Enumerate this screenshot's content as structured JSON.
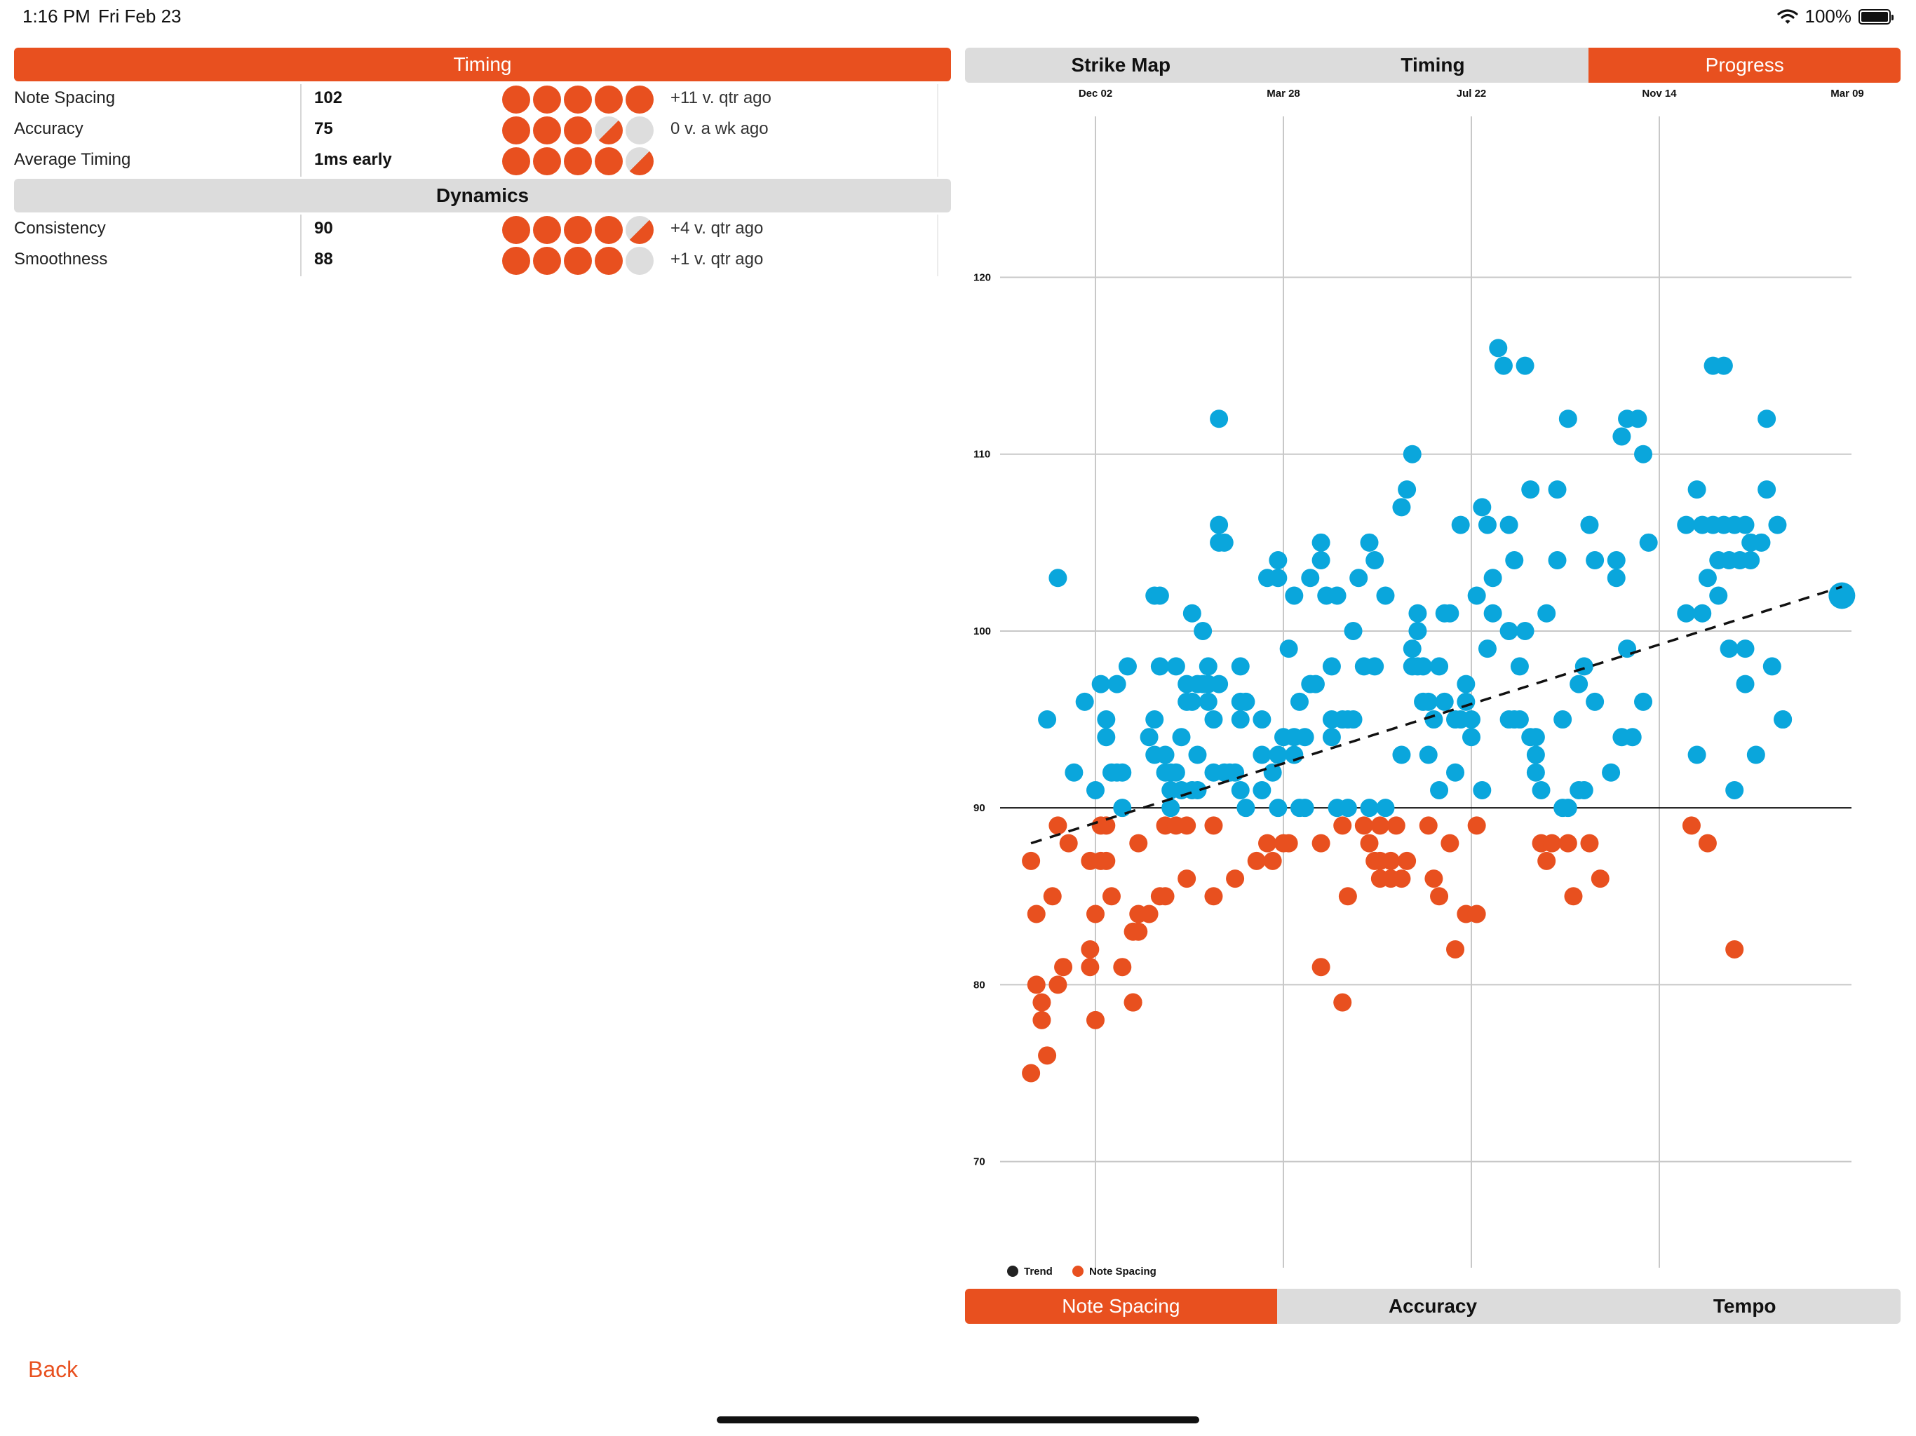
{
  "status_bar": {
    "time": "1:16 PM",
    "date": "Fri Feb 23",
    "battery": "100%",
    "battery_level": 1.0
  },
  "timing_section": {
    "title": "Timing",
    "rows": [
      {
        "label": "Note Spacing",
        "value": "102",
        "rating": 5,
        "comparison": "+11 v. qtr ago"
      },
      {
        "label": "Accuracy",
        "value": "75",
        "rating": 3.5,
        "comparison": "0 v. a wk ago"
      },
      {
        "label": "Average Timing",
        "value": "1ms early",
        "rating": 4.5,
        "comparison": ""
      }
    ]
  },
  "dynamics_section": {
    "title": "Dynamics",
    "rows": [
      {
        "label": "Consistency",
        "value": "90",
        "rating": 4.5,
        "comparison": "+4 v. qtr ago"
      },
      {
        "label": "Smoothness",
        "value": "88",
        "rating": 4,
        "comparison": "+1 v. qtr ago"
      }
    ]
  },
  "top_tabs": [
    {
      "label": "Strike Map",
      "active": false
    },
    {
      "label": "Timing",
      "active": false
    },
    {
      "label": "Progress",
      "active": true
    }
  ],
  "bottom_tabs": [
    {
      "label": "Note  Spacing",
      "active": true
    },
    {
      "label": "Accuracy",
      "active": false
    },
    {
      "label": "Tempo",
      "active": false
    }
  ],
  "back_label": "Back",
  "colors": {
    "accent": "#e8501f",
    "blue": "#0aa6dc",
    "gray": "#dcdcdc",
    "empty_dot": "#dddddd"
  },
  "chart_data": {
    "type": "scatter",
    "x_tick_labels": [
      "Dec 02",
      "Mar 28",
      "Jul 22",
      "Nov 14",
      "Mar 09"
    ],
    "y_ticks": [
      70,
      80,
      90,
      100,
      110,
      120
    ],
    "ylim": [
      64,
      131
    ],
    "reference_line": 90,
    "legend": [
      "Trend",
      "Note Spacing"
    ],
    "legend_placement": "bottom-left",
    "trend": {
      "start": [
        -12,
        88
      ],
      "end": [
        139,
        102.5
      ]
    },
    "series": [
      {
        "name": "Note Spacing",
        "color_rule": "orange below 90, blue at or above 90",
        "points": [
          [
            -12,
            75
          ],
          [
            -12,
            87
          ],
          [
            -11,
            80
          ],
          [
            -11,
            84
          ],
          [
            -10,
            78
          ],
          [
            -10,
            79
          ],
          [
            -9,
            76
          ],
          [
            -9,
            95
          ],
          [
            -8,
            85
          ],
          [
            -7,
            89
          ],
          [
            -7,
            103
          ],
          [
            -7,
            80
          ],
          [
            -6,
            81
          ],
          [
            -5,
            88
          ],
          [
            -4,
            92
          ],
          [
            -2,
            96
          ],
          [
            -1,
            82
          ],
          [
            -1,
            87
          ],
          [
            -1,
            81
          ],
          [
            0,
            78
          ],
          [
            0,
            84
          ],
          [
            0,
            91
          ],
          [
            1,
            89
          ],
          [
            1,
            87
          ],
          [
            1,
            97
          ],
          [
            2,
            89
          ],
          [
            2,
            95
          ],
          [
            2,
            87
          ],
          [
            2,
            94
          ],
          [
            3,
            85
          ],
          [
            3,
            92
          ],
          [
            4,
            92
          ],
          [
            4,
            97
          ],
          [
            5,
            92
          ],
          [
            5,
            81
          ],
          [
            5,
            90
          ],
          [
            6,
            98
          ],
          [
            7,
            83
          ],
          [
            7,
            79
          ],
          [
            7,
            79
          ],
          [
            8,
            88
          ],
          [
            8,
            84
          ],
          [
            8,
            83
          ],
          [
            10,
            94
          ],
          [
            10,
            84
          ],
          [
            11,
            102
          ],
          [
            11,
            93
          ],
          [
            11,
            95
          ],
          [
            12,
            102
          ],
          [
            12,
            98
          ],
          [
            12,
            85
          ],
          [
            13,
            85
          ],
          [
            13,
            93
          ],
          [
            13,
            92
          ],
          [
            13,
            89
          ],
          [
            14,
            91
          ],
          [
            14,
            90
          ],
          [
            14,
            92
          ],
          [
            15,
            92
          ],
          [
            15,
            89
          ],
          [
            15,
            98
          ],
          [
            16,
            91
          ],
          [
            16,
            94
          ],
          [
            17,
            97
          ],
          [
            17,
            96
          ],
          [
            17,
            86
          ],
          [
            17,
            89
          ],
          [
            18,
            91
          ],
          [
            18,
            96
          ],
          [
            18,
            101
          ],
          [
            19,
            97
          ],
          [
            19,
            91
          ],
          [
            19,
            93
          ],
          [
            20,
            100
          ],
          [
            20,
            97
          ],
          [
            21,
            96
          ],
          [
            21,
            97
          ],
          [
            21,
            98
          ],
          [
            22,
            95
          ],
          [
            22,
            92
          ],
          [
            22,
            89
          ],
          [
            22,
            85
          ],
          [
            23,
            97
          ],
          [
            23,
            112
          ],
          [
            23,
            106
          ],
          [
            23,
            105
          ],
          [
            24,
            105
          ],
          [
            24,
            92
          ],
          [
            25,
            92
          ],
          [
            26,
            92
          ],
          [
            26,
            86
          ],
          [
            27,
            98
          ],
          [
            27,
            96
          ],
          [
            27,
            91
          ],
          [
            27,
            95
          ],
          [
            28,
            90
          ],
          [
            28,
            96
          ],
          [
            30,
            87
          ],
          [
            31,
            95
          ],
          [
            31,
            93
          ],
          [
            31,
            91
          ],
          [
            32,
            88
          ],
          [
            32,
            103
          ],
          [
            33,
            92
          ],
          [
            33,
            87
          ],
          [
            34,
            103
          ],
          [
            34,
            104
          ],
          [
            34,
            93
          ],
          [
            34,
            90
          ],
          [
            35,
            88
          ],
          [
            35,
            94
          ],
          [
            36,
            88
          ],
          [
            36,
            99
          ],
          [
            37,
            93
          ],
          [
            37,
            102
          ],
          [
            37,
            94
          ],
          [
            38,
            96
          ],
          [
            38,
            90
          ],
          [
            39,
            94
          ],
          [
            39,
            90
          ],
          [
            40,
            103
          ],
          [
            40,
            97
          ],
          [
            41,
            97
          ],
          [
            42,
            105
          ],
          [
            42,
            104
          ],
          [
            42,
            88
          ],
          [
            42,
            81
          ],
          [
            43,
            102
          ],
          [
            44,
            98
          ],
          [
            44,
            95
          ],
          [
            44,
            94
          ],
          [
            45,
            90
          ],
          [
            45,
            102
          ],
          [
            46,
            79
          ],
          [
            46,
            89
          ],
          [
            46,
            95
          ],
          [
            47,
            85
          ],
          [
            47,
            90
          ],
          [
            47,
            95
          ],
          [
            48,
            95
          ],
          [
            48,
            100
          ],
          [
            49,
            103
          ],
          [
            50,
            89
          ],
          [
            50,
            98
          ],
          [
            51,
            88
          ],
          [
            51,
            105
          ],
          [
            51,
            90
          ],
          [
            52,
            87
          ],
          [
            52,
            104
          ],
          [
            52,
            98
          ],
          [
            53,
            89
          ],
          [
            53,
            87
          ],
          [
            53,
            86
          ],
          [
            54,
            90
          ],
          [
            54,
            102
          ],
          [
            55,
            87
          ],
          [
            55,
            86
          ],
          [
            56,
            89
          ],
          [
            57,
            107
          ],
          [
            57,
            93
          ],
          [
            57,
            86
          ],
          [
            58,
            108
          ],
          [
            58,
            87
          ],
          [
            59,
            110
          ],
          [
            59,
            99
          ],
          [
            59,
            98
          ],
          [
            60,
            101
          ],
          [
            60,
            100
          ],
          [
            60,
            98
          ],
          [
            61,
            96
          ],
          [
            61,
            98
          ],
          [
            62,
            93
          ],
          [
            62,
            89
          ],
          [
            62,
            96
          ],
          [
            63,
            95
          ],
          [
            63,
            86
          ],
          [
            64,
            91
          ],
          [
            64,
            98
          ],
          [
            64,
            85
          ],
          [
            65,
            101
          ],
          [
            65,
            96
          ],
          [
            66,
            88
          ],
          [
            66,
            101
          ],
          [
            67,
            95
          ],
          [
            67,
            82
          ],
          [
            67,
            92
          ],
          [
            68,
            106
          ],
          [
            68,
            95
          ],
          [
            69,
            97
          ],
          [
            69,
            96
          ],
          [
            69,
            84
          ],
          [
            70,
            95
          ],
          [
            70,
            94
          ],
          [
            71,
            84
          ],
          [
            71,
            89
          ],
          [
            71,
            102
          ],
          [
            72,
            91
          ],
          [
            72,
            107
          ],
          [
            73,
            106
          ],
          [
            73,
            99
          ],
          [
            74,
            101
          ],
          [
            74,
            103
          ],
          [
            75,
            116
          ],
          [
            76,
            115
          ],
          [
            77,
            95
          ],
          [
            77,
            100
          ],
          [
            77,
            106
          ],
          [
            78,
            104
          ],
          [
            78,
            95
          ],
          [
            79,
            95
          ],
          [
            79,
            98
          ],
          [
            80,
            100
          ],
          [
            80,
            115
          ],
          [
            81,
            108
          ],
          [
            81,
            94
          ],
          [
            82,
            94
          ],
          [
            82,
            93
          ],
          [
            82,
            92
          ],
          [
            83,
            88
          ],
          [
            83,
            91
          ],
          [
            84,
            101
          ],
          [
            84,
            87
          ],
          [
            85,
            88
          ],
          [
            86,
            108
          ],
          [
            86,
            104
          ],
          [
            87,
            90
          ],
          [
            87,
            95
          ],
          [
            88,
            112
          ],
          [
            88,
            88
          ],
          [
            88,
            90
          ],
          [
            89,
            85
          ],
          [
            90,
            97
          ],
          [
            90,
            91
          ],
          [
            91,
            98
          ],
          [
            91,
            91
          ],
          [
            92,
            88
          ],
          [
            92,
            106
          ],
          [
            93,
            104
          ],
          [
            93,
            96
          ],
          [
            94,
            86
          ],
          [
            96,
            92
          ],
          [
            97,
            104
          ],
          [
            97,
            103
          ],
          [
            98,
            94
          ],
          [
            98,
            111
          ],
          [
            99,
            112
          ],
          [
            99,
            99
          ],
          [
            100,
            94
          ],
          [
            101,
            112
          ],
          [
            102,
            110
          ],
          [
            102,
            96
          ],
          [
            103,
            105
          ],
          [
            110,
            106
          ],
          [
            110,
            101
          ],
          [
            111,
            89
          ],
          [
            112,
            93
          ],
          [
            112,
            108
          ],
          [
            113,
            106
          ],
          [
            113,
            101
          ],
          [
            114,
            88
          ],
          [
            114,
            103
          ],
          [
            115,
            106
          ],
          [
            115,
            115
          ],
          [
            116,
            104
          ],
          [
            116,
            102
          ],
          [
            117,
            106
          ],
          [
            117,
            115
          ],
          [
            118,
            104
          ],
          [
            118,
            99
          ],
          [
            119,
            82
          ],
          [
            119,
            106
          ],
          [
            119,
            91
          ],
          [
            120,
            104
          ],
          [
            121,
            99
          ],
          [
            121,
            106
          ],
          [
            121,
            97
          ],
          [
            122,
            104
          ],
          [
            122,
            105
          ],
          [
            123,
            93
          ],
          [
            124,
            105
          ],
          [
            125,
            112
          ],
          [
            125,
            108
          ],
          [
            126,
            98
          ],
          [
            127,
            106
          ],
          [
            128,
            95
          ],
          [
            128,
            95
          ],
          [
            139,
            102
          ]
        ]
      }
    ]
  }
}
